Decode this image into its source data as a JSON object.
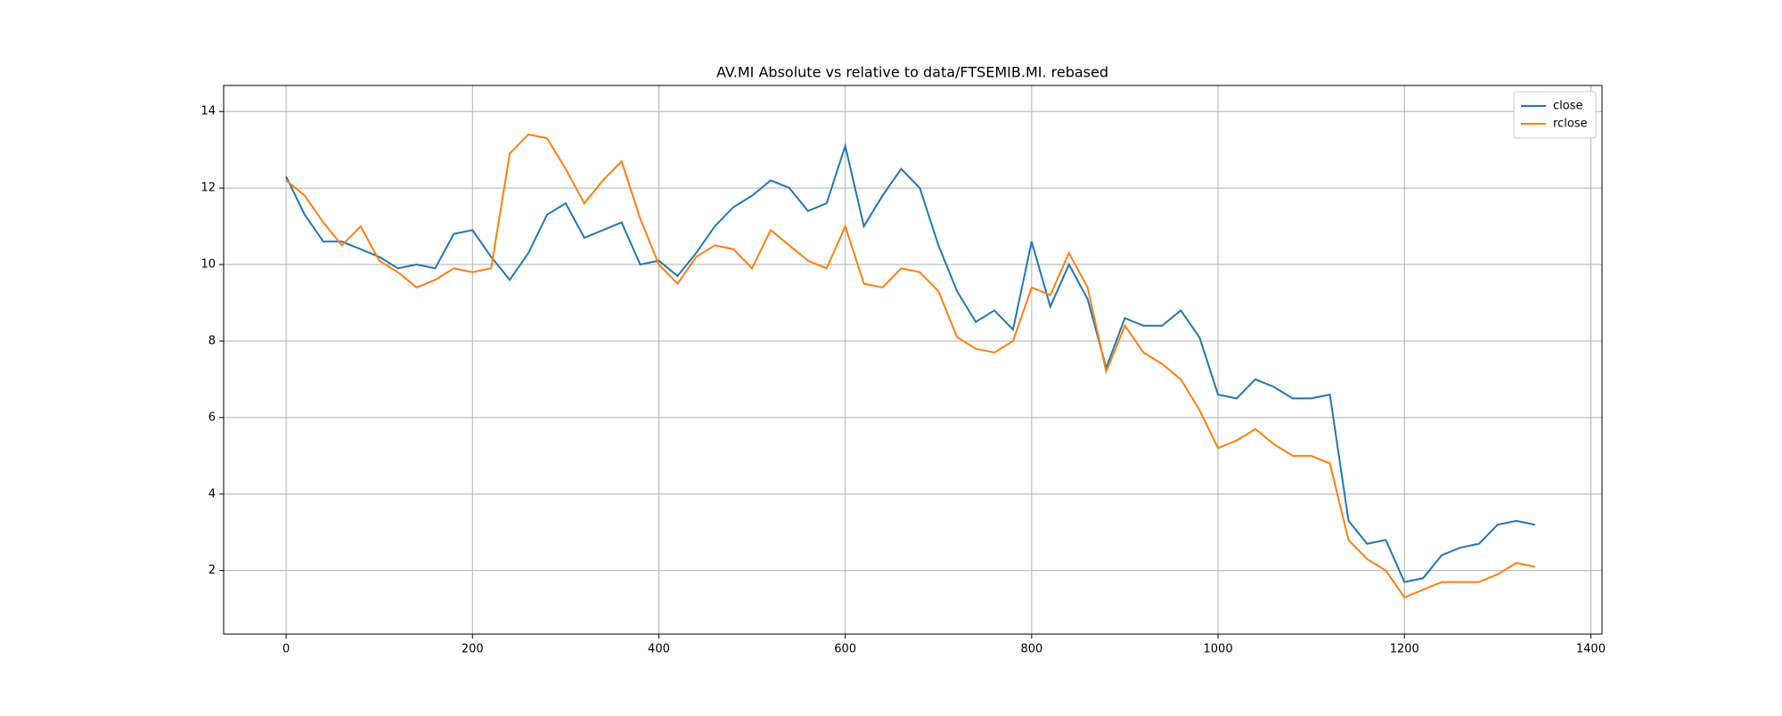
{
  "chart_data": {
    "type": "line",
    "title": "AV.MI Absolute vs relative to data/FTSEMIB.MI. rebased",
    "x": [
      0,
      20,
      40,
      60,
      80,
      100,
      120,
      140,
      160,
      180,
      200,
      220,
      240,
      260,
      280,
      300,
      320,
      340,
      360,
      380,
      400,
      420,
      440,
      460,
      480,
      500,
      520,
      540,
      560,
      580,
      600,
      620,
      640,
      660,
      680,
      700,
      720,
      740,
      760,
      780,
      800,
      820,
      840,
      860,
      880,
      900,
      920,
      940,
      960,
      980,
      1000,
      1020,
      1040,
      1060,
      1080,
      1100,
      1120,
      1140,
      1160,
      1180,
      1200,
      1220,
      1240,
      1260,
      1280,
      1300,
      1320,
      1340
    ],
    "series": [
      {
        "name": "close",
        "color": "#1f77b4",
        "values": [
          12.3,
          11.3,
          10.6,
          10.6,
          10.4,
          10.2,
          9.9,
          10.0,
          9.9,
          10.8,
          10.9,
          10.2,
          9.6,
          10.3,
          11.3,
          11.6,
          10.7,
          10.9,
          11.1,
          10.0,
          10.1,
          9.7,
          10.3,
          11.0,
          11.5,
          11.8,
          12.2,
          12.0,
          11.4,
          11.6,
          13.1,
          11.0,
          11.8,
          12.5,
          12.0,
          10.5,
          9.3,
          8.5,
          8.8,
          8.3,
          10.6,
          8.9,
          10.0,
          9.1,
          7.3,
          8.6,
          8.4,
          8.4,
          8.8,
          8.1,
          6.6,
          6.5,
          7.0,
          6.8,
          6.5,
          6.5,
          6.6,
          3.3,
          2.7,
          2.8,
          1.7,
          1.8,
          2.4,
          2.6,
          2.7,
          3.2,
          3.3,
          3.2
        ]
      },
      {
        "name": "rclose",
        "color": "#ff7f0e",
        "values": [
          12.2,
          11.8,
          11.1,
          10.5,
          11.0,
          10.1,
          9.8,
          9.4,
          9.6,
          9.9,
          9.8,
          9.9,
          12.9,
          13.4,
          13.3,
          12.5,
          11.6,
          12.2,
          12.7,
          11.2,
          10.0,
          9.5,
          10.2,
          10.5,
          10.4,
          9.9,
          10.9,
          10.5,
          10.1,
          9.9,
          11.0,
          9.5,
          9.4,
          9.9,
          9.8,
          9.3,
          8.1,
          7.8,
          7.7,
          8.0,
          9.4,
          9.2,
          10.3,
          9.4,
          7.2,
          8.4,
          7.7,
          7.4,
          7.0,
          6.2,
          5.2,
          5.4,
          5.7,
          5.3,
          5.0,
          5.0,
          4.8,
          2.8,
          2.3,
          2.0,
          1.3,
          1.5,
          1.7,
          1.7,
          1.7,
          1.9,
          2.2,
          2.1
        ]
      }
    ],
    "xlim": [
      -67,
      1412
    ],
    "ylim": [
      0.34,
      14.68
    ],
    "xticks": [
      0,
      200,
      400,
      600,
      800,
      1000,
      1200,
      1400
    ],
    "yticks": [
      2,
      4,
      6,
      8,
      10,
      12,
      14
    ],
    "grid": true,
    "legend": "upper right"
  }
}
